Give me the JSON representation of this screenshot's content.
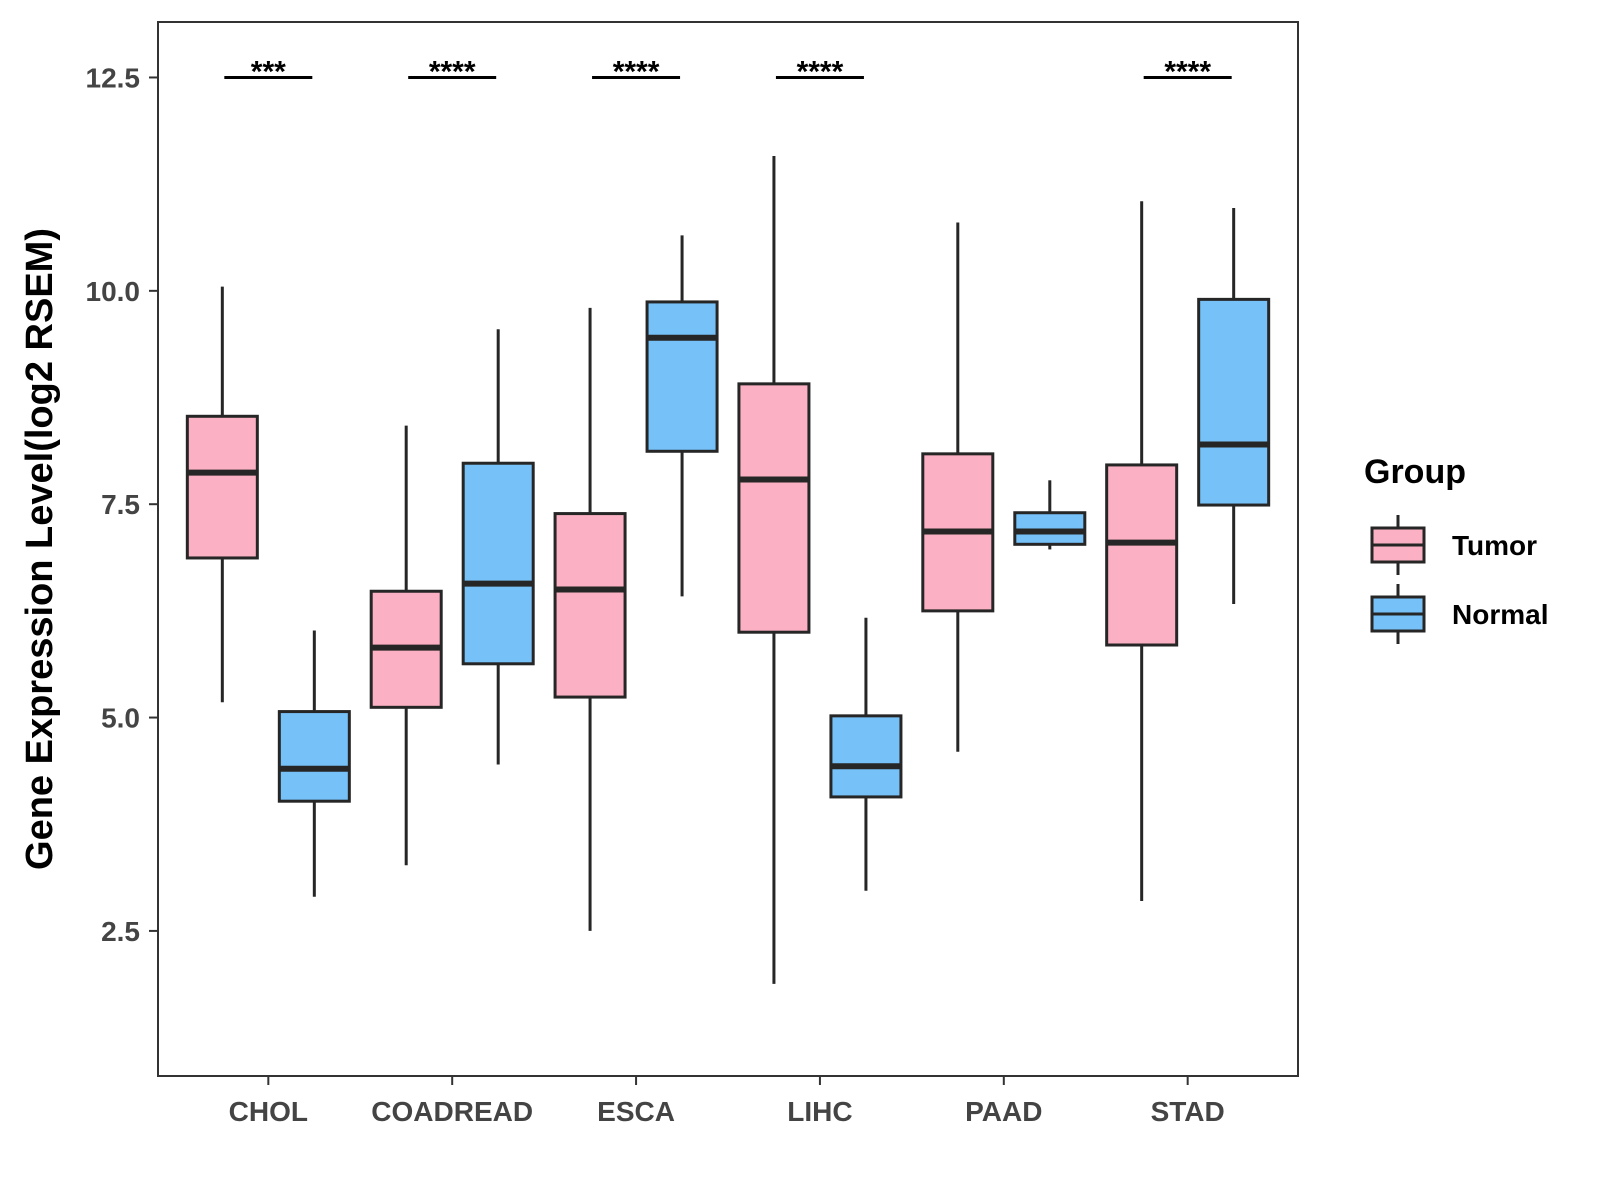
{
  "chart_data": {
    "type": "boxplot",
    "ylabel": "Gene Expression Level(log2 RSEM)",
    "xlabel": "",
    "ylim": [
      0.8,
      13.15
    ],
    "yticks": [
      2.5,
      5.0,
      7.5,
      10.0,
      12.5
    ],
    "ytick_labels": [
      "2.5",
      "5.0",
      "7.5",
      "10.0",
      "12.5"
    ],
    "categories": [
      "CHOL",
      "COADREAD",
      "ESCA",
      "LIHC",
      "PAAD",
      "STAD"
    ],
    "legend": {
      "title": "Group",
      "position": "right",
      "entries": [
        "Tumor",
        "Normal"
      ]
    },
    "colors": {
      "Tumor": "#FBB1C3",
      "Normal": "#76C1F8",
      "stroke": "#262626"
    },
    "series": [
      {
        "name": "Tumor",
        "boxes": [
          {
            "min": 5.18,
            "q1": 6.87,
            "median": 7.87,
            "q3": 8.53,
            "max": 10.05
          },
          {
            "min": 3.27,
            "q1": 5.12,
            "median": 5.82,
            "q3": 6.48,
            "max": 8.42
          },
          {
            "min": 2.5,
            "q1": 5.24,
            "median": 6.5,
            "q3": 7.39,
            "max": 9.8
          },
          {
            "min": 1.88,
            "q1": 6.0,
            "median": 7.79,
            "q3": 8.91,
            "max": 11.58
          },
          {
            "min": 4.6,
            "q1": 6.25,
            "median": 7.18,
            "q3": 8.09,
            "max": 10.8
          },
          {
            "min": 2.85,
            "q1": 5.85,
            "median": 7.05,
            "q3": 7.96,
            "max": 11.05
          }
        ]
      },
      {
        "name": "Normal",
        "boxes": [
          {
            "min": 2.9,
            "q1": 4.02,
            "median": 4.4,
            "q3": 5.07,
            "max": 6.02
          },
          {
            "min": 4.45,
            "q1": 5.63,
            "median": 6.57,
            "q3": 7.98,
            "max": 9.55
          },
          {
            "min": 6.42,
            "q1": 8.12,
            "median": 9.45,
            "q3": 9.87,
            "max": 10.65
          },
          {
            "min": 2.97,
            "q1": 4.07,
            "median": 4.43,
            "q3": 5.02,
            "max": 6.17
          },
          {
            "min": 6.97,
            "q1": 7.03,
            "median": 7.18,
            "q3": 7.4,
            "max": 7.78
          },
          {
            "min": 6.33,
            "q1": 7.49,
            "median": 8.2,
            "q3": 9.9,
            "max": 10.97
          }
        ]
      }
    ],
    "significance": [
      {
        "category": "CHOL",
        "label": "***",
        "y": 12.5
      },
      {
        "category": "COADREAD",
        "label": "****",
        "y": 12.5
      },
      {
        "category": "ESCA",
        "label": "****",
        "y": 12.5
      },
      {
        "category": "LIHC",
        "label": "****",
        "y": 12.5
      },
      {
        "category": "STAD",
        "label": "****",
        "y": 12.5
      }
    ]
  }
}
